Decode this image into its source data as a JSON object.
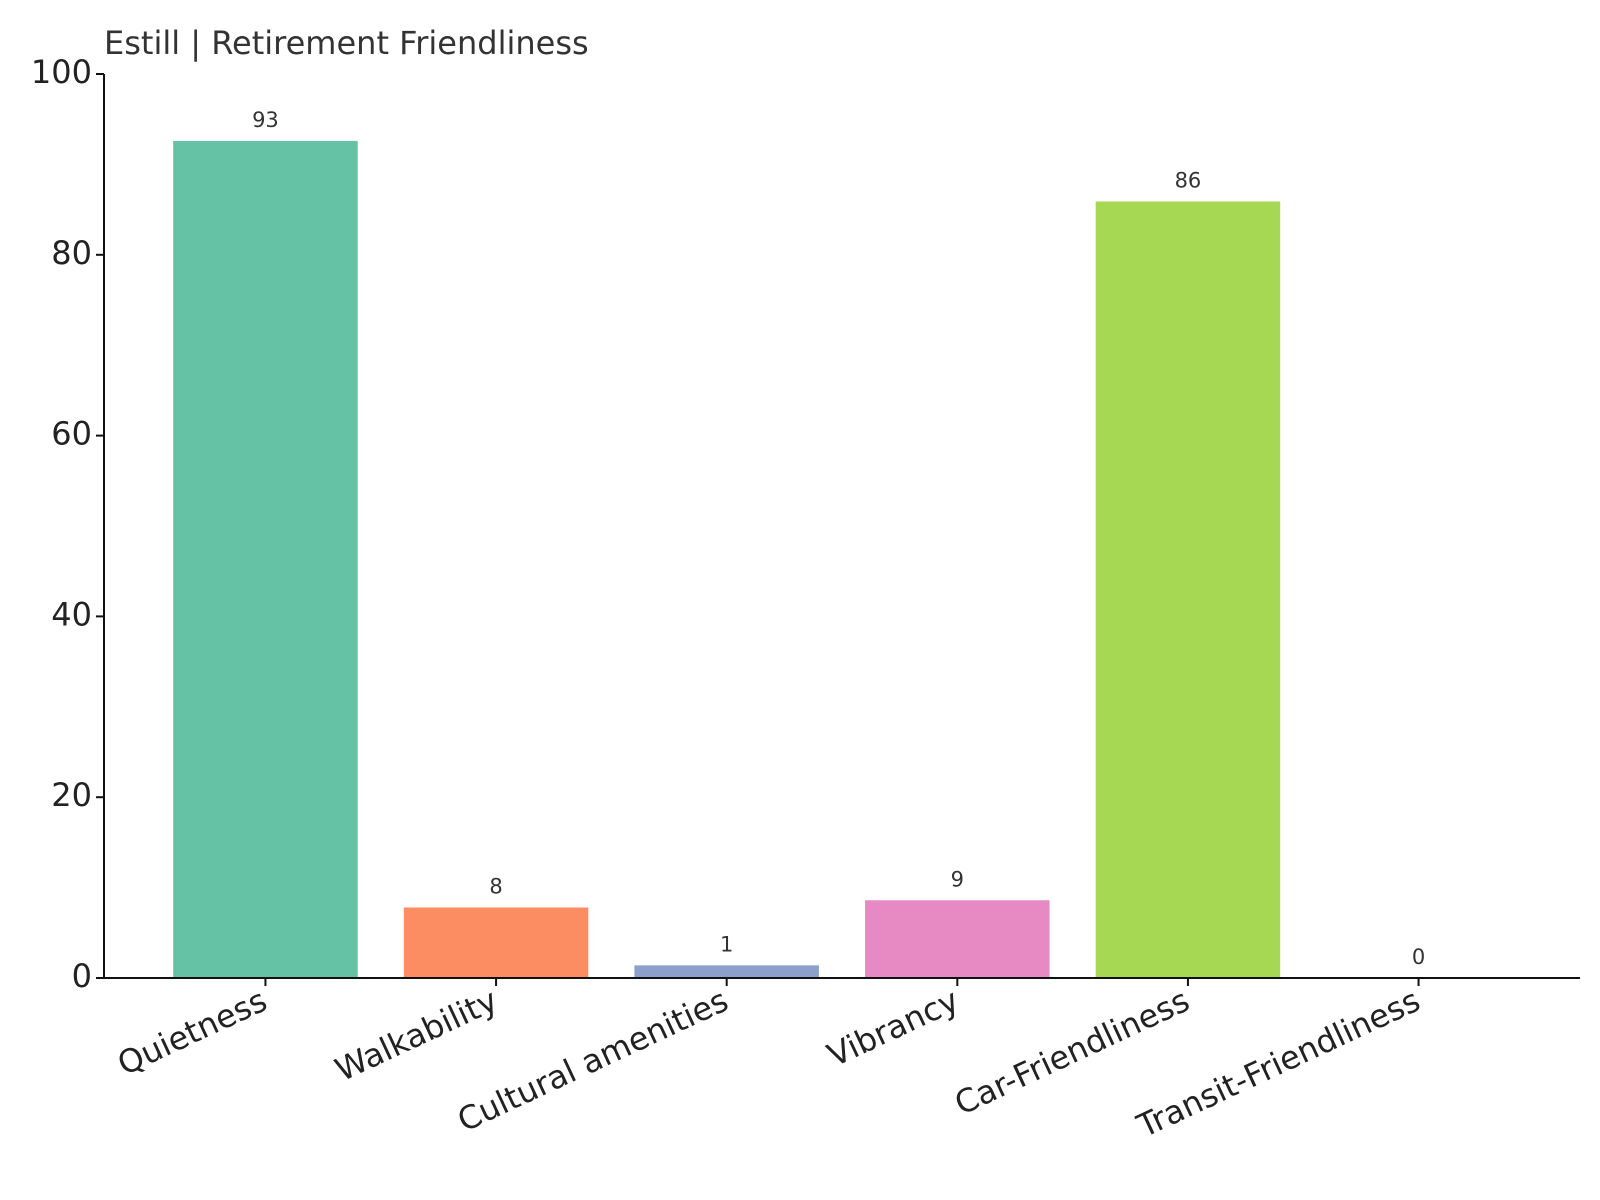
{
  "chart_data": {
    "type": "bar",
    "title": "Estill | Retirement Friendliness",
    "categories": [
      "Quietness",
      "Walkability",
      "Cultural amenities",
      "Vibrancy",
      "Car-Friendliness",
      "Transit-Friendliness"
    ],
    "values": [
      92.6,
      7.8,
      1.4,
      8.6,
      85.9,
      0
    ],
    "value_labels": [
      "93",
      "8",
      "1",
      "9",
      "86",
      "0"
    ],
    "colors": [
      "#66c2a5",
      "#fc8d62",
      "#8da0cb",
      "#e78ac3",
      "#a6d854",
      "#ffd92f"
    ],
    "ylim": [
      0,
      100
    ],
    "yticks": [
      0,
      20,
      40,
      60,
      80,
      100
    ],
    "grid": false
  }
}
